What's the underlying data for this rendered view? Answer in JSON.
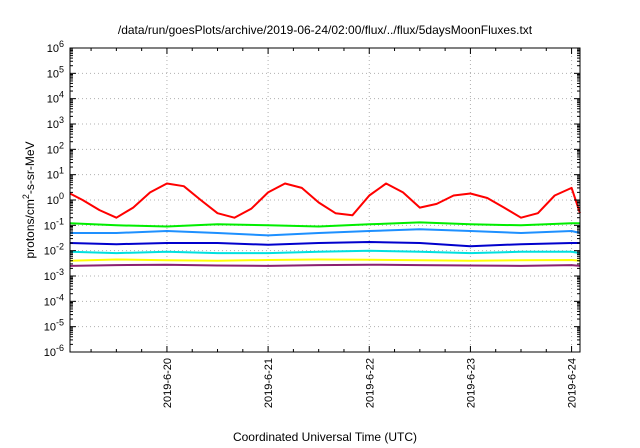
{
  "chart_data": {
    "type": "line",
    "title": "/data/run/goesPlots/archive/2019-06-24/02:00/flux/../flux/5daysMoonFluxes.txt",
    "xlabel": "Coordinated Universal Time (UTC)",
    "ylabel": "protons/cm²-s-sr-MeV",
    "ylabel_parts": {
      "before": "protons/cm",
      "sup": "2",
      "after": "-s-sr-MeV"
    },
    "y_scale": "log",
    "ylim": [
      1e-06,
      1000000.0
    ],
    "y_ticks": [
      {
        "base": "10",
        "exp": "-6"
      },
      {
        "base": "10",
        "exp": "-5"
      },
      {
        "base": "10",
        "exp": "-4"
      },
      {
        "base": "10",
        "exp": "-3"
      },
      {
        "base": "10",
        "exp": "-2"
      },
      {
        "base": "10",
        "exp": "-1"
      },
      {
        "base": "10",
        "exp": "0"
      },
      {
        "base": "10",
        "exp": "1"
      },
      {
        "base": "10",
        "exp": "2"
      },
      {
        "base": "10",
        "exp": "3"
      },
      {
        "base": "10",
        "exp": "4"
      },
      {
        "base": "10",
        "exp": "5"
      },
      {
        "base": "10",
        "exp": "6"
      }
    ],
    "xlim": [
      "2019-06-19 01:00",
      "2019-06-24 02:00"
    ],
    "x_ticks": [
      "2019-6-20",
      "2019-6-21",
      "2019-6-22",
      "2019-6-23",
      "2019-6-24"
    ],
    "grid": true,
    "series": [
      {
        "color": "#ff0000",
        "x": [
          "2019-06-19 01:00",
          "2019-06-19 04:00",
          "2019-06-19 08:00",
          "2019-06-19 12:00",
          "2019-06-19 16:00",
          "2019-06-19 20:00",
          "2019-06-20 00:00",
          "2019-06-20 04:00",
          "2019-06-20 08:00",
          "2019-06-20 12:00",
          "2019-06-20 16:00",
          "2019-06-20 20:00",
          "2019-06-21 00:00",
          "2019-06-21 04:00",
          "2019-06-21 08:00",
          "2019-06-21 12:00",
          "2019-06-21 16:00",
          "2019-06-21 20:00",
          "2019-06-22 00:00",
          "2019-06-22 04:00",
          "2019-06-22 08:00",
          "2019-06-22 12:00",
          "2019-06-22 16:00",
          "2019-06-22 20:00",
          "2019-06-23 00:00",
          "2019-06-23 04:00",
          "2019-06-23 08:00",
          "2019-06-23 12:00",
          "2019-06-23 16:00",
          "2019-06-23 20:00",
          "2019-06-24 00:00",
          "2019-06-24 02:00"
        ],
        "y": [
          1.8,
          1.0,
          0.4,
          0.2,
          0.5,
          2.0,
          4.5,
          3.5,
          1.0,
          0.3,
          0.2,
          0.45,
          2.0,
          4.5,
          3.0,
          0.8,
          0.3,
          0.25,
          1.5,
          4.5,
          2.0,
          0.5,
          0.7,
          1.5,
          1.8,
          1.2,
          0.5,
          0.2,
          0.3,
          1.5,
          3.0,
          0.3
        ]
      },
      {
        "color": "#00ee00",
        "x": [
          "2019-06-19 01:00",
          "2019-06-19 12:00",
          "2019-06-20 00:00",
          "2019-06-20 12:00",
          "2019-06-21 00:00",
          "2019-06-21 12:00",
          "2019-06-22 00:00",
          "2019-06-22 12:00",
          "2019-06-23 00:00",
          "2019-06-23 12:00",
          "2019-06-24 00:00",
          "2019-06-24 02:00"
        ],
        "y": [
          0.12,
          0.1,
          0.09,
          0.11,
          0.1,
          0.09,
          0.11,
          0.13,
          0.11,
          0.1,
          0.12,
          0.12
        ]
      },
      {
        "color": "#1e90ff",
        "x": [
          "2019-06-19 01:00",
          "2019-06-19 12:00",
          "2019-06-20 00:00",
          "2019-06-20 12:00",
          "2019-06-21 00:00",
          "2019-06-21 12:00",
          "2019-06-22 00:00",
          "2019-06-22 12:00",
          "2019-06-23 00:00",
          "2019-06-23 12:00",
          "2019-06-24 00:00",
          "2019-06-24 02:00"
        ],
        "y": [
          0.05,
          0.05,
          0.06,
          0.05,
          0.04,
          0.05,
          0.06,
          0.07,
          0.06,
          0.05,
          0.06,
          0.05
        ]
      },
      {
        "color": "#0000cc",
        "x": [
          "2019-06-19 01:00",
          "2019-06-19 12:00",
          "2019-06-20 00:00",
          "2019-06-20 12:00",
          "2019-06-21 00:00",
          "2019-06-21 12:00",
          "2019-06-22 00:00",
          "2019-06-22 12:00",
          "2019-06-23 00:00",
          "2019-06-23 12:00",
          "2019-06-24 00:00",
          "2019-06-24 02:00"
        ],
        "y": [
          0.02,
          0.018,
          0.02,
          0.02,
          0.017,
          0.02,
          0.022,
          0.02,
          0.015,
          0.018,
          0.02,
          0.02
        ]
      },
      {
        "color": "#00e0e0",
        "x": [
          "2019-06-19 01:00",
          "2019-06-19 12:00",
          "2019-06-20 00:00",
          "2019-06-20 12:00",
          "2019-06-21 00:00",
          "2019-06-21 12:00",
          "2019-06-22 00:00",
          "2019-06-22 12:00",
          "2019-06-23 00:00",
          "2019-06-23 12:00",
          "2019-06-24 00:00",
          "2019-06-24 02:00"
        ],
        "y": [
          0.009,
          0.008,
          0.009,
          0.008,
          0.008,
          0.009,
          0.01,
          0.009,
          0.008,
          0.009,
          0.009,
          0.008
        ]
      },
      {
        "color": "#ffff00",
        "x": [
          "2019-06-19 01:00",
          "2019-06-19 12:00",
          "2019-06-20 00:00",
          "2019-06-20 12:00",
          "2019-06-21 00:00",
          "2019-06-21 12:00",
          "2019-06-22 00:00",
          "2019-06-22 12:00",
          "2019-06-23 00:00",
          "2019-06-23 12:00",
          "2019-06-24 00:00",
          "2019-06-24 02:00"
        ],
        "y": [
          0.004,
          0.0045,
          0.0042,
          0.004,
          0.0043,
          0.0045,
          0.0044,
          0.0042,
          0.004,
          0.0042,
          0.0043,
          0.004
        ]
      },
      {
        "color": "#8b2070",
        "x": [
          "2019-06-19 01:00",
          "2019-06-19 12:00",
          "2019-06-20 00:00",
          "2019-06-20 12:00",
          "2019-06-21 00:00",
          "2019-06-21 12:00",
          "2019-06-22 00:00",
          "2019-06-22 12:00",
          "2019-06-23 00:00",
          "2019-06-23 12:00",
          "2019-06-24 00:00",
          "2019-06-24 02:00"
        ],
        "y": [
          0.0025,
          0.0027,
          0.0028,
          0.0026,
          0.0025,
          0.0027,
          0.0028,
          0.0027,
          0.0026,
          0.0025,
          0.0027,
          0.0025
        ]
      }
    ]
  }
}
